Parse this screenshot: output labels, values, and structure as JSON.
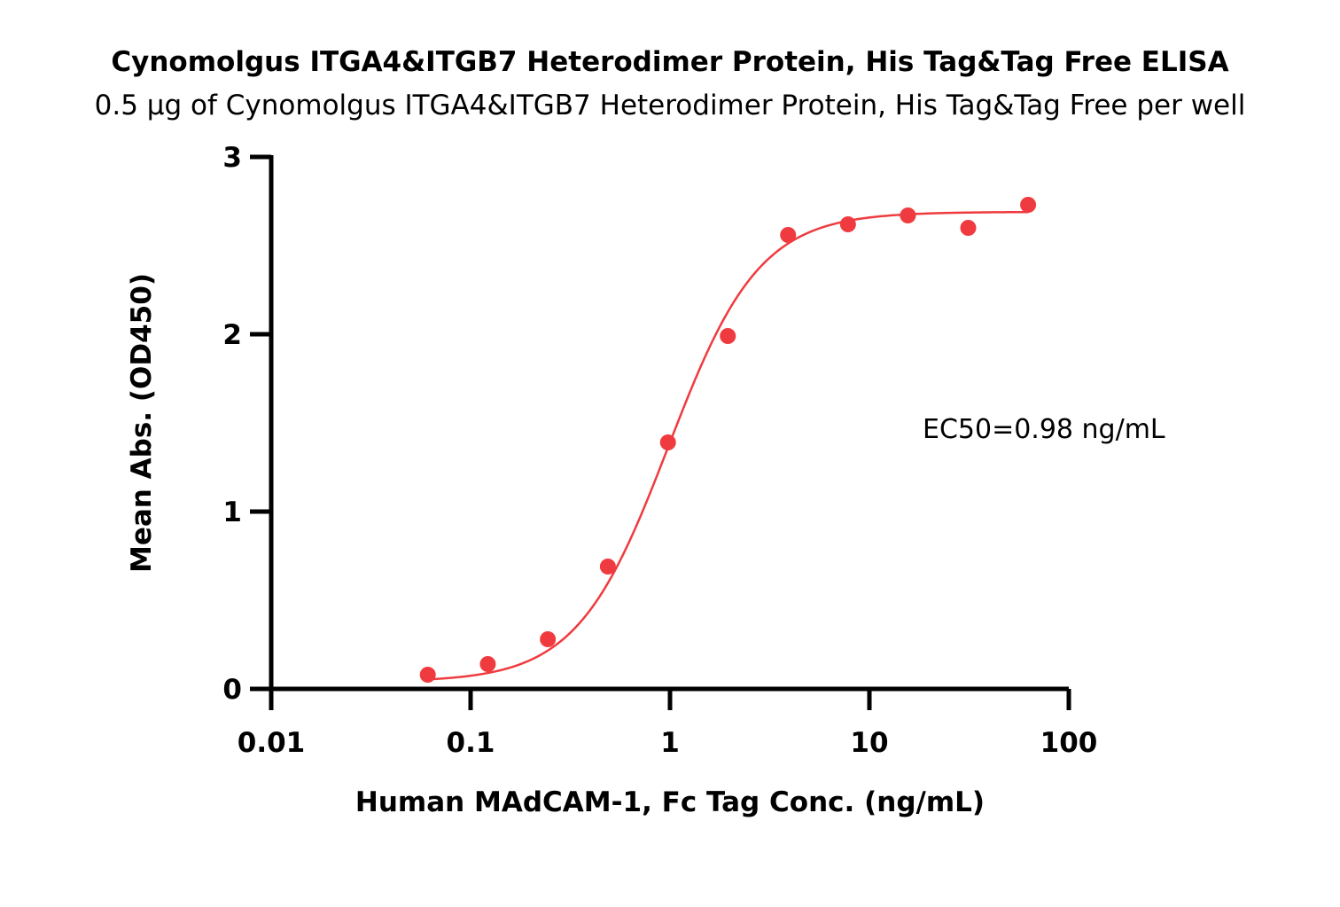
{
  "chart_data": {
    "type": "scatter",
    "title": "Cynomolgus ITGA4&ITGB7 Heterodimer Protein, His Tag&Tag Free ELISA",
    "subtitle": "0.5 µg of Cynomolgus ITGA4&ITGB7 Heterodimer Protein, His Tag&Tag Free per well",
    "xlabel": "Human MAdCAM-1, Fc Tag Conc. (ng/mL)",
    "ylabel": "Mean Abs. (OD450)",
    "x_scale": "log",
    "xlim": [
      0.01,
      100
    ],
    "ylim": [
      0,
      3
    ],
    "x_ticks": [
      0.01,
      0.1,
      1,
      10,
      100
    ],
    "x_tick_labels": [
      "0.01",
      "0.1",
      "1",
      "10",
      "100"
    ],
    "y_ticks": [
      0,
      1,
      2,
      3
    ],
    "y_tick_labels": [
      "0",
      "1",
      "2",
      "3"
    ],
    "grid": false,
    "series": [
      {
        "color": "#ef3b3f",
        "x": [
          0.061,
          0.122,
          0.244,
          0.488,
          0.977,
          1.95,
          3.91,
          7.81,
          15.6,
          31.3,
          62.5
        ],
        "y": [
          0.08,
          0.14,
          0.28,
          0.69,
          1.39,
          1.99,
          2.56,
          2.62,
          2.67,
          2.6,
          2.73
        ]
      }
    ],
    "fit_curve": {
      "model": "4PL",
      "bottom": 0.04,
      "top": 2.69,
      "ec50": 0.98,
      "hill": 1.9,
      "color": "#ef3b3f"
    },
    "annotations": [
      {
        "text": "EC50=0.98 ng/mL"
      }
    ]
  }
}
